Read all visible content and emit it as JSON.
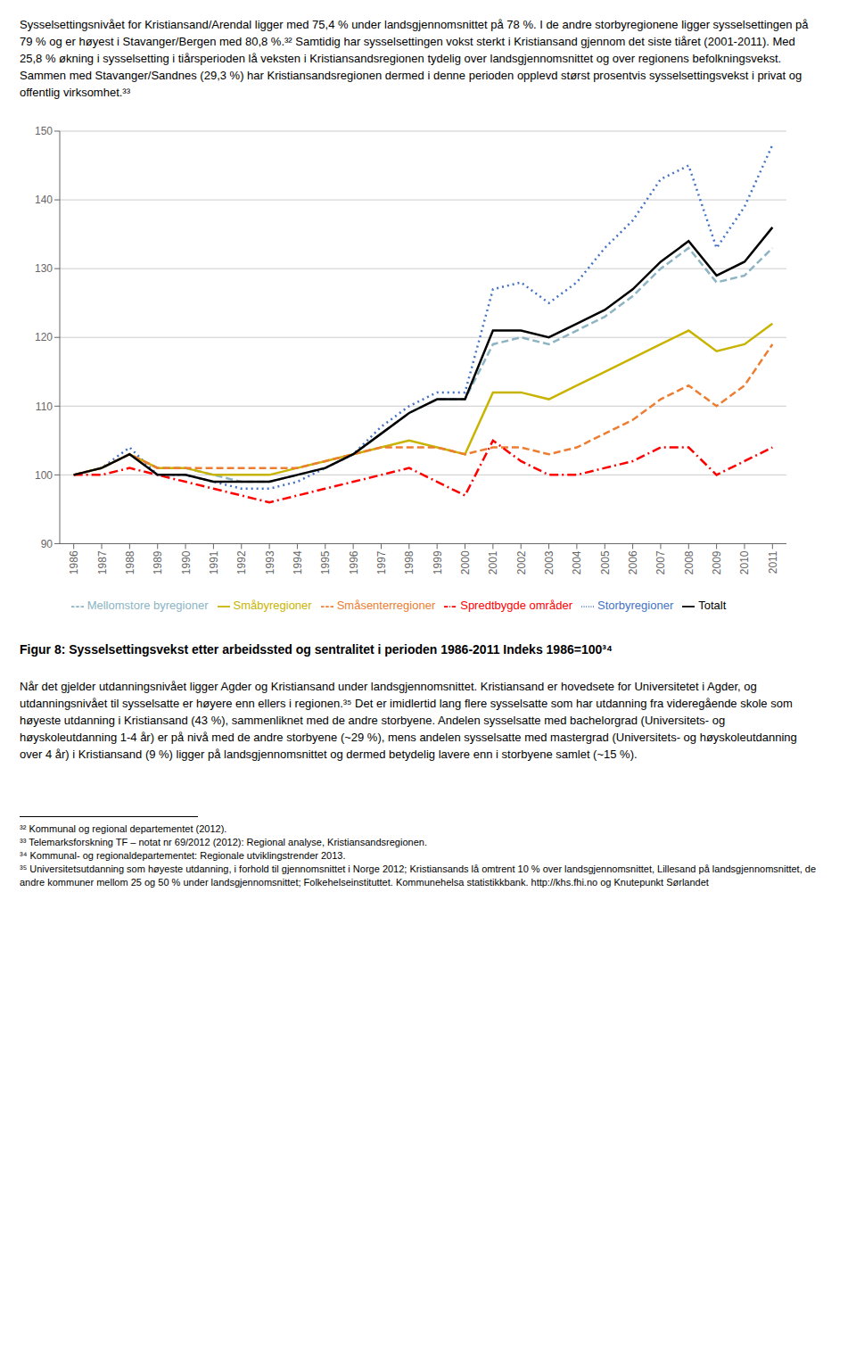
{
  "chart_data": {
    "type": "line",
    "title": "Figur 8: Sysselsettingsvekst etter arbeidssted og sentralitet i perioden 1986-2011 Indeks 1986=100³⁴",
    "x": [
      1986,
      1987,
      1988,
      1989,
      1990,
      1991,
      1992,
      1993,
      1994,
      1995,
      1996,
      1997,
      1998,
      1999,
      2000,
      2001,
      2002,
      2003,
      2004,
      2005,
      2006,
      2007,
      2008,
      2009,
      2010,
      2011
    ],
    "xlim": [
      1985.5,
      2011.5
    ],
    "xticks": [
      1986,
      1987,
      1988,
      1989,
      1990,
      1991,
      1992,
      1993,
      1994,
      1995,
      1996,
      1997,
      1998,
      1999,
      2000,
      2001,
      2002,
      2003,
      2004,
      2005,
      2006,
      2007,
      2008,
      2009,
      2010,
      2011
    ],
    "ylim": [
      90,
      150
    ],
    "yticks": [
      90,
      100,
      110,
      120,
      130,
      140,
      150
    ],
    "grid": "y",
    "legend": "bottom",
    "series": [
      {
        "name": "Storbyregioner",
        "color": "#4472C4",
        "line_style": "dotted",
        "values": [
          100,
          101,
          104,
          100,
          100,
          99,
          98,
          98,
          99,
          101,
          103,
          107,
          110,
          112,
          112,
          127,
          128,
          125,
          128,
          133,
          137,
          143,
          145,
          133,
          139,
          148
        ]
      },
      {
        "name": "Mellomstore byregioner",
        "color": "#8CB4C3",
        "line_style": "dashed",
        "values": [
          100,
          101,
          103,
          101,
          101,
          100,
          99,
          99,
          100,
          101,
          103,
          106,
          109,
          111,
          111,
          119,
          120,
          119,
          121,
          123,
          126,
          130,
          133,
          128,
          129,
          133
        ]
      },
      {
        "name": "Småbyregioner",
        "color": "#C8B400",
        "line_style": "solid",
        "values": [
          100,
          101,
          103,
          101,
          101,
          100,
          100,
          100,
          101,
          102,
          103,
          104,
          105,
          104,
          103,
          112,
          112,
          111,
          113,
          115,
          117,
          119,
          121,
          118,
          119,
          122
        ]
      },
      {
        "name": "Småsenterregioner",
        "color": "#ED7D31",
        "line_style": "dashed",
        "values": [
          100,
          101,
          103,
          101,
          101,
          101,
          101,
          101,
          101,
          102,
          103,
          104,
          104,
          104,
          103,
          104,
          104,
          103,
          104,
          106,
          108,
          111,
          113,
          110,
          113,
          119
        ]
      },
      {
        "name": "Spredtbygde områder",
        "color": "#FF0000",
        "line_style": "dashdot",
        "values": [
          100,
          100,
          101,
          100,
          99,
          98,
          97,
          96,
          97,
          98,
          99,
          100,
          101,
          99,
          97,
          105,
          102,
          100,
          100,
          101,
          102,
          104,
          104,
          100,
          102,
          104
        ]
      },
      {
        "name": "Totalt",
        "color": "#000000",
        "line_style": "solid",
        "values": [
          100,
          101,
          103,
          100,
          100,
          99,
          99,
          99,
          100,
          101,
          103,
          106,
          109,
          111,
          111,
          121,
          121,
          120,
          122,
          124,
          127,
          131,
          134,
          129,
          131,
          136
        ]
      }
    ],
    "annotations": [
      "Sysselsettingsnivået for Kristiansand/Arendal ligger med 75,4 % under landsgjennomsnittet på 78 %. I de andre storbyregionene ligger sysselsettingen på 79 % og er høyest i Stavanger/Bergen med 80,8 %.³² Samtidig har sysselsettingen vokst sterkt i Kristiansand gjennom det siste tiåret (2001-2011). Med 25,8 % økning i sysselsetting i tiårsperioden lå veksten i Kristiansandsregionen tydelig over landsgjennomsnittet og over regionens befolkningsvekst. Sammen med Stavanger/Sandnes (29,3 %) har Kristiansandsregionen dermed i denne perioden opplevd størst prosentvis sysselsettingsvekst i privat og offentlig virksomhet.³³",
      "Når det gjelder utdanningsnivået ligger Agder og Kristiansand under landsgjennomsnittet. Kristiansand er hovedsete for Universitetet i Agder, og utdanningsnivået til sysselsatte er høyere enn ellers i regionen.³⁵ Det er imidlertid lang flere sysselsatte som har utdanning fra videregående skole som høyeste utdanning i Kristiansand (43 %), sammenliknet med de andre storbyene. Andelen sysselsatte med bachelorgrad (Universitets- og høyskoleutdanning 1-4 år) er på nivå med de andre storbyene (~29 %), mens andelen sysselsatte med mastergrad (Universitets- og høyskoleutdanning over 4 år) i Kristiansand (9 %) ligger på landsgjennomsnittet og dermed betydelig lavere enn i storbyene samlet (~15 %)."
    ],
    "footnotes": [
      "³² Kommunal og regional departementet (2012).",
      "³³ Telemarksforskning TF – notat nr 69/2012 (2012): Regional analyse, Kristiansandsregionen.",
      "³⁴ Kommunal- og regionaldepartementet: Regionale utviklingstrender 2013.",
      "³⁵ Universitetsutdanning som høyeste utdanning, i forhold til gjennomsnittet i Norge 2012; Kristiansands lå omtrent 10 % over landsgjennomsnittet, Lillesand på landsgjennomsnittet, de andre kommuner mellom 25 og 50 % under landsgjennomsnittet; Folkehelseinstituttet. Kommunehelsa statistikkbank. http://khs.fhi.no og Knutepunkt Sørlandet"
    ]
  }
}
